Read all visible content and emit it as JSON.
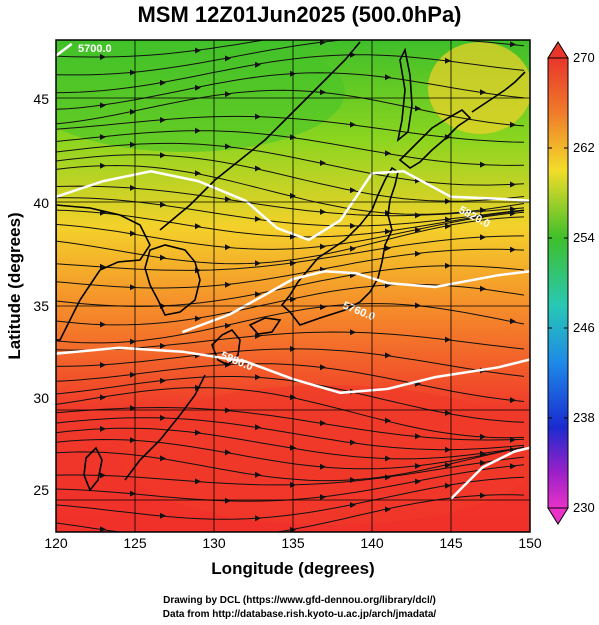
{
  "title": "MSM 12Z01Jun2025 (500.0hPa)",
  "x_axis": {
    "label": "Longitude (degrees)",
    "ticks": [
      "120",
      "125",
      "130",
      "135",
      "140",
      "145",
      "150"
    ]
  },
  "y_axis": {
    "label": "Latitude  (degrees)",
    "ticks": [
      "25",
      "30",
      "35",
      "40",
      "45"
    ]
  },
  "colorbar": {
    "ticks": [
      "270",
      "262",
      "254",
      "246",
      "238",
      "230"
    ]
  },
  "contour_labels": [
    "5820.0",
    "5760.0",
    "5880.0",
    "5700.0"
  ],
  "credits": {
    "line1": "Drawing by DCL (https://www.gfd-dennou.org/library/dcl/)",
    "line2": "Data from http://database.rish.kyoto-u.ac.jp/arch/jmadata/"
  },
  "chart_data": {
    "type": "heatmap",
    "title": "MSM 12Z01Jun2025 (500.0hPa)",
    "xlabel": "Longitude (degrees)",
    "ylabel": "Latitude  (degrees)",
    "xlim": [
      120,
      150
    ],
    "ylim": [
      22.5,
      47.6
    ],
    "colorbar_range": [
      230,
      270
    ],
    "colorbar_ticks": [
      270,
      262,
      254,
      246,
      238,
      230
    ],
    "colors": {
      "warm": "#f03a2a",
      "mid": "#f4d12a",
      "cool": "#3fbf2a",
      "land": "#000000",
      "contour": "#ffffff"
    },
    "contours": [
      {
        "label": "5880.0",
        "points": [
          [
            120,
            31.6
          ],
          [
            124,
            31.9
          ],
          [
            128,
            31.7
          ],
          [
            132,
            31.2
          ],
          [
            135,
            30.3
          ],
          [
            138,
            29.6
          ],
          [
            141,
            29.8
          ],
          [
            144,
            30.4
          ],
          [
            148,
            30.9
          ],
          [
            150,
            31.3
          ]
        ]
      },
      {
        "label": "5820.0",
        "points": [
          [
            128,
            32.7
          ],
          [
            131,
            33.6
          ],
          [
            133,
            34.5
          ],
          [
            135,
            35.4
          ],
          [
            137,
            35.8
          ],
          [
            139,
            35.7
          ],
          [
            141,
            35.2
          ],
          [
            144,
            35.0
          ],
          [
            148,
            35.6
          ],
          [
            150,
            35.8
          ]
        ]
      },
      {
        "label": "5760.0",
        "points": [
          [
            120,
            39.6
          ],
          [
            123,
            40.4
          ],
          [
            126,
            40.9
          ],
          [
            129,
            40.4
          ],
          [
            132,
            39.4
          ],
          [
            134,
            38.0
          ],
          [
            136,
            37.4
          ],
          [
            138,
            38.4
          ],
          [
            140,
            40.8
          ],
          [
            142,
            40.9
          ],
          [
            145,
            39.6
          ],
          [
            148,
            39.5
          ],
          [
            150,
            39.4
          ]
        ]
      },
      {
        "label": "5700.0",
        "points": [
          [
            120,
            46.8
          ],
          [
            121,
            47.4
          ]
        ]
      },
      {
        "label": "",
        "points": [
          [
            145,
            24.2
          ],
          [
            147,
            25.8
          ],
          [
            149,
            26.6
          ],
          [
            150,
            26.8
          ]
        ]
      }
    ]
  }
}
